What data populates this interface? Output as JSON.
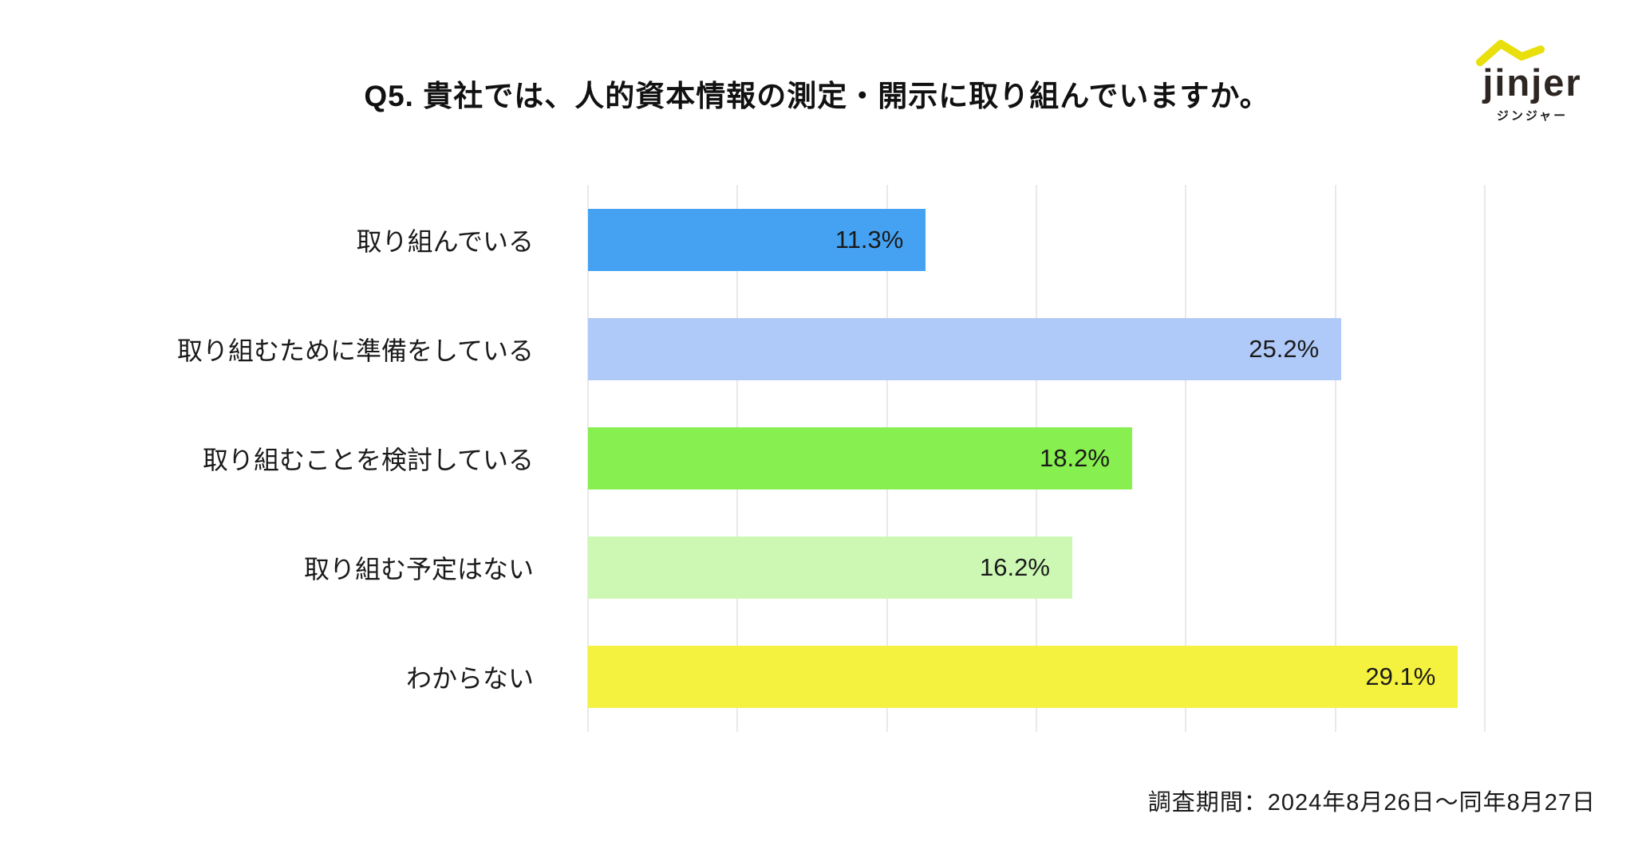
{
  "header": {
    "title": "Q5. 貴社では、人的資本情報の測定・開示に取り組んでいますか。"
  },
  "logo": {
    "wordmark": "jinjer",
    "subtext": "ジンジャー",
    "mark_color": "#E8DF0C",
    "text_color": "#2D2622"
  },
  "chart_data": {
    "type": "bar",
    "orientation": "horizontal",
    "title": "Q5. 貴社では、人的資本情報の測定・開示に取り組んでいますか。",
    "categories": [
      "取り組んでいる",
      "取り組むために準備をしている",
      "取り組むことを検討している",
      "取り組む予定はない",
      "わからない"
    ],
    "values": [
      11.3,
      25.2,
      18.2,
      16.2,
      29.1
    ],
    "value_labels": [
      "11.3%",
      "25.2%",
      "18.2%",
      "16.2%",
      "29.1%"
    ],
    "bar_colors": [
      "#45A2F2",
      "#AFC9F8",
      "#87EF4F",
      "#CCF8B4",
      "#F4F13F"
    ],
    "xlabel": "",
    "ylabel": "",
    "xlim": [
      0,
      30
    ],
    "grid_step": 5,
    "grid": true,
    "grid_color": "#E9E9E9",
    "legend": false,
    "value_label_position": "inside-end"
  },
  "footer": {
    "survey_period": "調査期間：2024年8月26日〜同年8月27日"
  }
}
